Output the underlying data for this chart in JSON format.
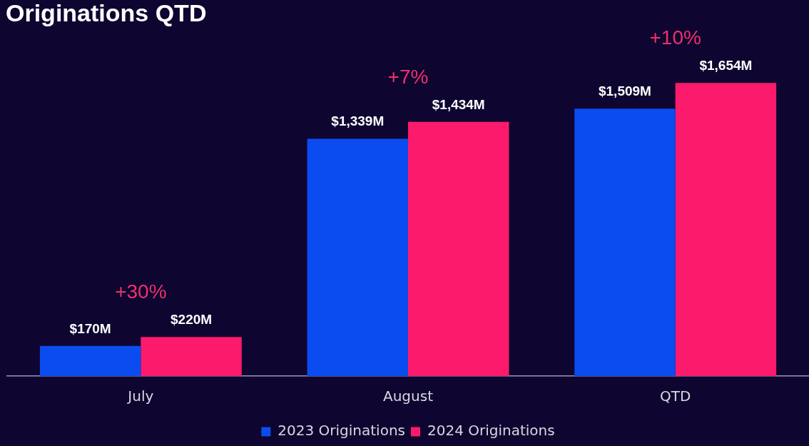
{
  "chart_data": {
    "type": "bar",
    "title": "Originations QTD",
    "categories": [
      "July",
      "August",
      "QTD"
    ],
    "series": [
      {
        "name": "2023 Originations",
        "color": "#0b4cf0",
        "values": [
          170,
          1339,
          1509
        ],
        "value_labels": [
          "$170M",
          "$1,339M",
          "$1,509M"
        ]
      },
      {
        "name": "2024 Originations",
        "color": "#fc1a6c",
        "values": [
          220,
          1434,
          1654
        ],
        "value_labels": [
          "$220M",
          "$1,434M",
          "$1,654M"
        ]
      }
    ],
    "annotations": [
      "+30%",
      "+7%",
      "+10%"
    ],
    "legend": "bottom"
  }
}
